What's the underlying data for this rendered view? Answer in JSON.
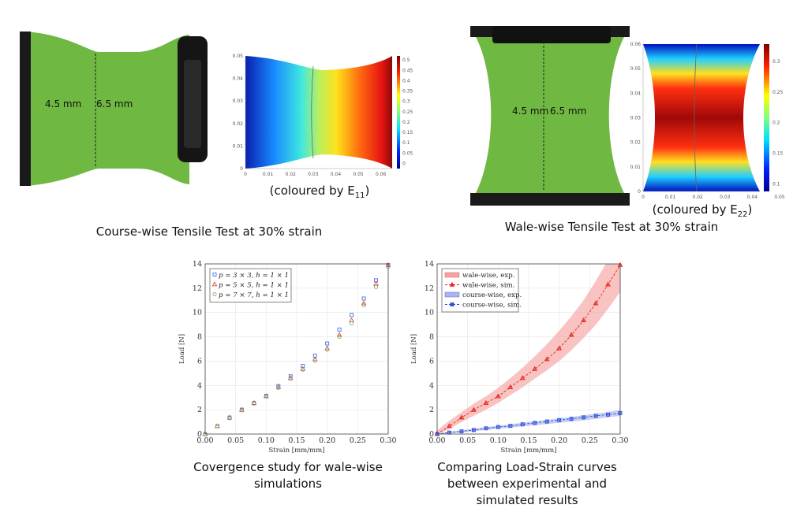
{
  "panels": {
    "course_photo": {
      "label_left": "4.5 mm",
      "label_right": "6.5 mm"
    },
    "course_map": {
      "caption_prefix": "(coloured by E",
      "caption_sub": "11",
      "caption_suffix": ")",
      "x_ticks": [
        "0",
        "0.01",
        "0.02",
        "0.03",
        "0.04",
        "0.05",
        "0.06"
      ],
      "y_ticks": [
        "0",
        "0.01",
        "0.02",
        "0.03",
        "0.04",
        "0.05"
      ],
      "colorbar_ticks": [
        "0",
        "0.05",
        "0.1",
        "0.15",
        "0.2",
        "0.25",
        "0.3",
        "0.35",
        "0.4",
        "0.45",
        "0.5"
      ]
    },
    "course_caption": "Course-wise Tensile Test at 30% strain",
    "wale_photo": {
      "label_left": "4.5 mm",
      "label_right": "6.5 mm"
    },
    "wale_map": {
      "caption_prefix": "(coloured by E",
      "caption_sub": "22",
      "caption_suffix": ")",
      "x_ticks": [
        "0",
        "0.01",
        "0.02",
        "0.03",
        "0.04",
        "0.05"
      ],
      "y_ticks": [
        "0",
        "0.01",
        "0.02",
        "0.03",
        "0.04",
        "0.05",
        "0.06"
      ],
      "colorbar_ticks": [
        "0.1",
        "0.15",
        "0.2",
        "0.25",
        "0.3"
      ]
    },
    "wale_caption": "Wale-wise Tensile Test at 30% strain",
    "convergence_caption": [
      "Covergence study for wale-wise",
      "simulations"
    ],
    "comparison_caption": [
      "Comparing Load-Strain curves",
      "between experimental and",
      "simulated results"
    ]
  },
  "chart_data": [
    {
      "type": "scatter",
      "title": "",
      "xlabel": "Strain [mm/mm]",
      "ylabel": "Load [N]",
      "xlim": [
        0,
        0.3
      ],
      "ylim": [
        0,
        14
      ],
      "x_ticks": [
        "0.00",
        "0.05",
        "0.10",
        "0.15",
        "0.20",
        "0.25",
        "0.30"
      ],
      "y_ticks": [
        "0",
        "2",
        "4",
        "6",
        "8",
        "10",
        "12",
        "14"
      ],
      "grid": true,
      "legend_position": "top-left",
      "x": [
        0,
        0.02,
        0.04,
        0.06,
        0.08,
        0.1,
        0.12,
        0.14,
        0.16,
        0.18,
        0.2,
        0.22,
        0.24,
        0.26,
        0.28,
        0.3
      ],
      "series": [
        {
          "name": "p = 3 × 3, h = 1 × 1",
          "marker": "square",
          "color": "#4a6fe3",
          "values": [
            0,
            0.65,
            1.35,
            2.0,
            2.55,
            3.15,
            3.95,
            4.75,
            5.6,
            6.45,
            7.45,
            8.6,
            9.8,
            11.15,
            12.65,
            13.9
          ]
        },
        {
          "name": "p = 5 × 5, h = 1 × 1",
          "marker": "triangle",
          "color": "#e8433f",
          "values": [
            0,
            0.65,
            1.35,
            1.98,
            2.55,
            3.1,
            3.85,
            4.6,
            5.35,
            6.15,
            7.05,
            8.15,
            9.35,
            10.75,
            12.35,
            13.9
          ]
        },
        {
          "name": "p = 7 × 7, h = 1 × 1",
          "marker": "circle",
          "color": "#7fb069",
          "values": [
            0,
            0.65,
            1.3,
            1.95,
            2.5,
            3.1,
            3.8,
            4.55,
            5.3,
            6.05,
            6.95,
            8.0,
            9.1,
            10.6,
            12.1,
            13.75
          ]
        }
      ]
    },
    {
      "type": "line",
      "title": "",
      "xlabel": "Strain [mm/mm]",
      "ylabel": "Load [N]",
      "xlim": [
        0,
        0.3
      ],
      "ylim": [
        0,
        14
      ],
      "x_ticks": [
        "0.00",
        "0.05",
        "0.10",
        "0.15",
        "0.20",
        "0.25",
        "0.30"
      ],
      "y_ticks": [
        "0",
        "2",
        "4",
        "6",
        "8",
        "10",
        "12",
        "14"
      ],
      "grid": true,
      "legend_position": "top-left",
      "x": [
        0,
        0.02,
        0.04,
        0.06,
        0.08,
        0.1,
        0.12,
        0.14,
        0.16,
        0.18,
        0.2,
        0.22,
        0.24,
        0.26,
        0.28,
        0.3
      ],
      "bands": [
        {
          "name": "wale-wise, exp.",
          "color": "#f5a3a0",
          "lower": [
            0,
            0.4,
            1.0,
            1.5,
            2.0,
            2.55,
            3.2,
            3.85,
            4.55,
            5.25,
            6.0,
            6.9,
            7.9,
            9.0,
            10.3,
            11.7
          ],
          "upper": [
            0.3,
            1.1,
            1.8,
            2.5,
            3.1,
            3.8,
            4.6,
            5.45,
            6.4,
            7.4,
            8.5,
            9.7,
            11.0,
            12.6,
            14.3,
            16.2
          ]
        },
        {
          "name": "course-wise, exp.",
          "color": "#a9b4f0",
          "lower": [
            0,
            0.05,
            0.13,
            0.22,
            0.33,
            0.43,
            0.52,
            0.62,
            0.72,
            0.82,
            0.92,
            1.02,
            1.13,
            1.25,
            1.37,
            1.5
          ],
          "upper": [
            0.05,
            0.2,
            0.32,
            0.44,
            0.57,
            0.68,
            0.8,
            0.93,
            1.05,
            1.17,
            1.3,
            1.42,
            1.55,
            1.68,
            1.82,
            1.98
          ]
        }
      ],
      "series": [
        {
          "name": "wale-wise, sim.",
          "marker": "triangle",
          "color": "#e8221c",
          "values": [
            0,
            0.65,
            1.35,
            1.98,
            2.55,
            3.1,
            3.85,
            4.6,
            5.35,
            6.15,
            7.05,
            8.15,
            9.35,
            10.75,
            12.3,
            13.9
          ]
        },
        {
          "name": "course-wise, sim.",
          "marker": "square",
          "color": "#2b50d8",
          "values": [
            0,
            0.12,
            0.22,
            0.33,
            0.47,
            0.58,
            0.67,
            0.8,
            0.92,
            1.03,
            1.15,
            1.25,
            1.37,
            1.5,
            1.6,
            1.72
          ]
        }
      ]
    }
  ]
}
